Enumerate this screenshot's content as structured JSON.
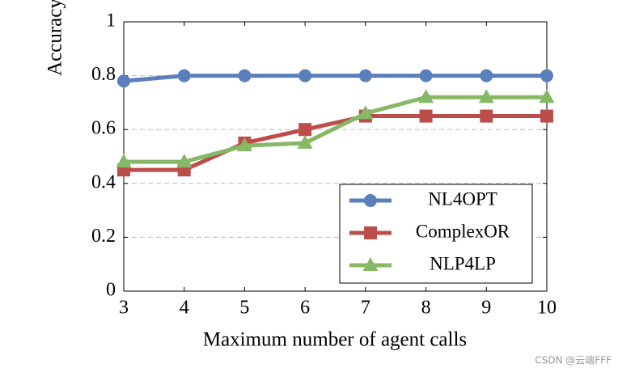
{
  "chart_data": {
    "type": "line",
    "xlabel": "Maximum number of agent calls",
    "ylabel": "Accuracy",
    "x": [
      3,
      4,
      5,
      6,
      7,
      8,
      9,
      10
    ],
    "series": [
      {
        "name": "NL4OPT",
        "color": "#5b7fbd",
        "marker": "circle",
        "values": [
          0.78,
          0.8,
          0.8,
          0.8,
          0.8,
          0.8,
          0.8,
          0.8
        ]
      },
      {
        "name": "ComplexOR",
        "color": "#bd4d4a",
        "marker": "square",
        "values": [
          0.45,
          0.45,
          0.55,
          0.6,
          0.65,
          0.65,
          0.65,
          0.65
        ]
      },
      {
        "name": "NLP4LP",
        "color": "#87b865",
        "marker": "triangle",
        "values": [
          0.48,
          0.48,
          0.54,
          0.55,
          0.66,
          0.72,
          0.72,
          0.72
        ]
      }
    ],
    "xlim": [
      3,
      10
    ],
    "xticks": [
      3,
      4,
      5,
      6,
      7,
      8,
      9,
      10
    ],
    "ylim": [
      0,
      1
    ],
    "yticks": [
      0,
      0.2,
      0.4,
      0.6,
      0.8,
      1
    ],
    "grid": true,
    "legend": "lower right",
    "watermark": "CSDN @云端FFF"
  }
}
